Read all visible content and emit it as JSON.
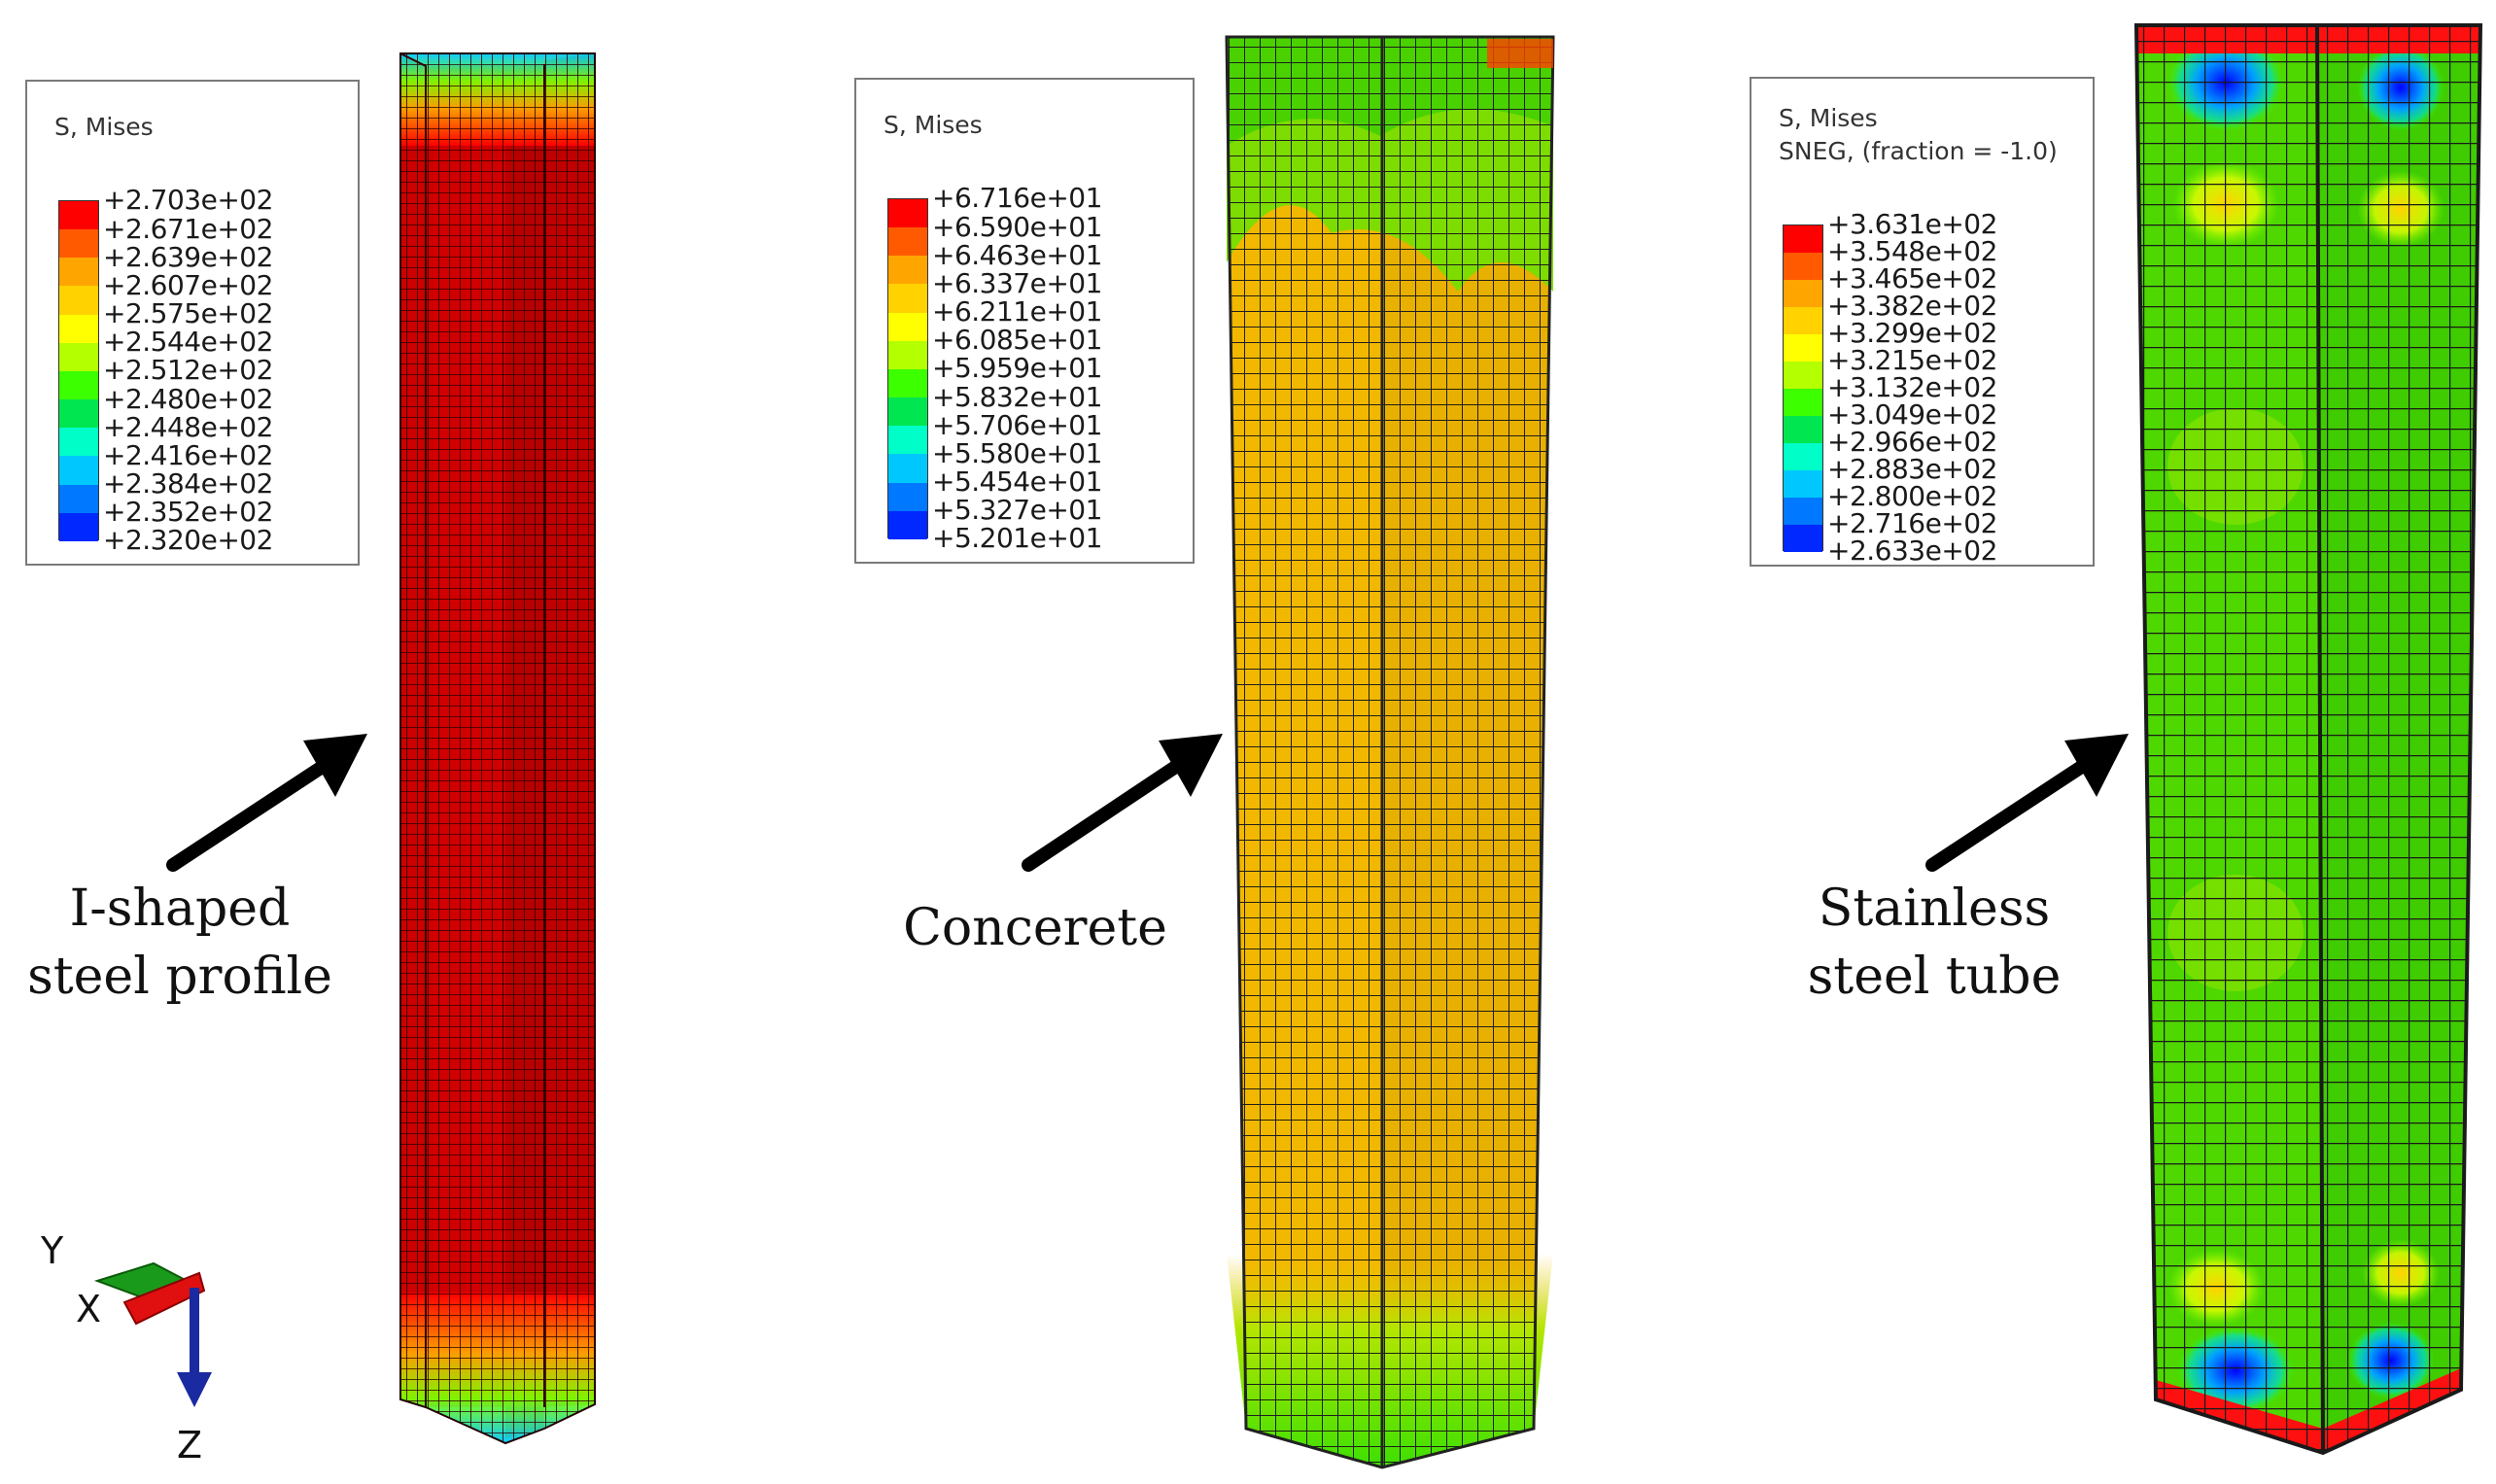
{
  "legends": [
    {
      "title": "S, Mises",
      "subtitle": "",
      "values": [
        "+2.703e+02",
        "+2.671e+02",
        "+2.639e+02",
        "+2.607e+02",
        "+2.575e+02",
        "+2.544e+02",
        "+2.512e+02",
        "+2.480e+02",
        "+2.448e+02",
        "+2.416e+02",
        "+2.384e+02",
        "+2.352e+02",
        "+2.320e+02"
      ]
    },
    {
      "title": "S, Mises",
      "subtitle": "",
      "values": [
        "+6.716e+01",
        "+6.590e+01",
        "+6.463e+01",
        "+6.337e+01",
        "+6.211e+01",
        "+6.085e+01",
        "+5.959e+01",
        "+5.832e+01",
        "+5.706e+01",
        "+5.580e+01",
        "+5.454e+01",
        "+5.327e+01",
        "+5.201e+01"
      ]
    },
    {
      "title": "S, Mises",
      "subtitle": "SNEG, (fraction = -1.0)",
      "values": [
        "+3.631e+02",
        "+3.548e+02",
        "+3.465e+02",
        "+3.382e+02",
        "+3.299e+02",
        "+3.215e+02",
        "+3.132e+02",
        "+3.049e+02",
        "+2.966e+02",
        "+2.883e+02",
        "+2.800e+02",
        "+2.716e+02",
        "+2.633e+02"
      ]
    }
  ],
  "colormap": [
    "#ff0000",
    "#ff5a00",
    "#ffa500",
    "#ffd200",
    "#ffff00",
    "#b4ff00",
    "#3cff00",
    "#00e650",
    "#00ffc8",
    "#00c8ff",
    "#0078ff",
    "#0028ff",
    "#0000ff"
  ],
  "labels": {
    "steel_profile": [
      "I-shaped",
      "steel profile"
    ],
    "concrete": [
      "Concerete"
    ],
    "tube": [
      "Stainless",
      "steel tube"
    ]
  },
  "axes": {
    "y": "Y",
    "x": "X",
    "z": "Z"
  }
}
